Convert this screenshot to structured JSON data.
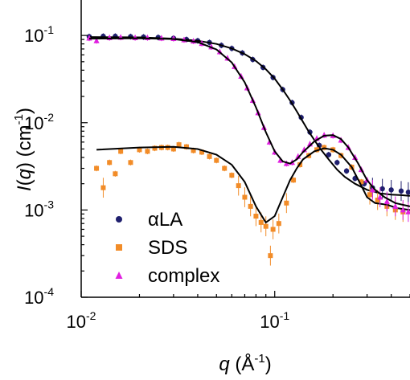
{
  "chart_data": {
    "type": "scatter",
    "x_scale": "log",
    "y_scale": "log",
    "xlim": [
      0.01,
      0.5
    ],
    "ylim": [
      0.0001,
      0.15
    ],
    "xlabel": "q (Å⁻¹)",
    "xlabel_parts": {
      "var": "q",
      "open": " (Å",
      "exp": "-1",
      "close": ")"
    },
    "ylabel": "I(q) (cm⁻¹)",
    "ylabel_parts": {
      "var": "I",
      "mid": "(",
      "var2": "q",
      "open": ") (cm",
      "exp": "-1",
      "close": ")"
    },
    "x_ticks": [
      {
        "value": 0.01,
        "base": "10",
        "exp": "-2"
      },
      {
        "value": 0.1,
        "base": "10",
        "exp": "-1"
      }
    ],
    "y_ticks": [
      {
        "value": 0.1,
        "base": "10",
        "exp": "-1"
      },
      {
        "value": 0.01,
        "base": "10",
        "exp": "-2"
      },
      {
        "value": 0.001,
        "base": "10",
        "exp": "-3"
      },
      {
        "value": 0.0001,
        "base": "10",
        "exp": "-4"
      }
    ],
    "grid": false,
    "legend_position": "bottom-left",
    "series": [
      {
        "name": "αLA",
        "color": "#1f1f6e",
        "marker": "circle",
        "points": [
          [
            0.011,
            0.097
          ],
          [
            0.013,
            0.098
          ],
          [
            0.015,
            0.098
          ],
          [
            0.018,
            0.097
          ],
          [
            0.021,
            0.096
          ],
          [
            0.025,
            0.095
          ],
          [
            0.03,
            0.093
          ],
          [
            0.035,
            0.09
          ],
          [
            0.04,
            0.087
          ],
          [
            0.046,
            0.083
          ],
          [
            0.053,
            0.077
          ],
          [
            0.06,
            0.071
          ],
          [
            0.068,
            0.063
          ],
          [
            0.077,
            0.053
          ],
          [
            0.087,
            0.043
          ],
          [
            0.098,
            0.033
          ],
          [
            0.11,
            0.024
          ],
          [
            0.123,
            0.017
          ],
          [
            0.137,
            0.0115
          ],
          [
            0.152,
            0.0078
          ],
          [
            0.17,
            0.0055
          ],
          [
            0.19,
            0.0043
          ],
          [
            0.21,
            0.0035
          ],
          [
            0.235,
            0.0028
          ],
          [
            0.26,
            0.0023
          ],
          [
            0.29,
            0.002
          ],
          [
            0.32,
            0.0018
          ],
          [
            0.36,
            0.00175
          ],
          [
            0.4,
            0.0017
          ],
          [
            0.45,
            0.00165
          ],
          [
            0.49,
            0.0016
          ]
        ],
        "fit": [
          [
            0.011,
            0.096
          ],
          [
            0.02,
            0.095
          ],
          [
            0.03,
            0.092
          ],
          [
            0.04,
            0.087
          ],
          [
            0.05,
            0.08
          ],
          [
            0.06,
            0.071
          ],
          [
            0.07,
            0.061
          ],
          [
            0.08,
            0.051
          ],
          [
            0.09,
            0.041
          ],
          [
            0.1,
            0.032
          ],
          [
            0.11,
            0.024
          ],
          [
            0.12,
            0.018
          ],
          [
            0.13,
            0.0135
          ],
          [
            0.14,
            0.0102
          ],
          [
            0.15,
            0.0079
          ],
          [
            0.17,
            0.0052
          ],
          [
            0.19,
            0.0038
          ],
          [
            0.21,
            0.0029
          ],
          [
            0.23,
            0.0024
          ],
          [
            0.26,
            0.002
          ],
          [
            0.3,
            0.0017
          ],
          [
            0.35,
            0.00155
          ],
          [
            0.4,
            0.0015
          ],
          [
            0.45,
            0.00148
          ],
          [
            0.5,
            0.00145
          ]
        ]
      },
      {
        "name": "SDS",
        "color": "#f28c28",
        "marker": "square",
        "points": [
          [
            0.012,
            0.003
          ],
          [
            0.013,
            0.0018
          ],
          [
            0.014,
            0.0035
          ],
          [
            0.015,
            0.0026
          ],
          [
            0.016,
            0.0047
          ],
          [
            0.018,
            0.0035
          ],
          [
            0.02,
            0.0049
          ],
          [
            0.022,
            0.0047
          ],
          [
            0.024,
            0.0051
          ],
          [
            0.026,
            0.0052
          ],
          [
            0.028,
            0.0052
          ],
          [
            0.03,
            0.005
          ],
          [
            0.032,
            0.0056
          ],
          [
            0.035,
            0.0053
          ],
          [
            0.038,
            0.0048
          ],
          [
            0.042,
            0.0046
          ],
          [
            0.046,
            0.0041
          ],
          [
            0.05,
            0.0037
          ],
          [
            0.055,
            0.003
          ],
          [
            0.06,
            0.0025
          ],
          [
            0.065,
            0.0019
          ],
          [
            0.07,
            0.0014
          ],
          [
            0.075,
            0.0011
          ],
          [
            0.08,
            0.00085
          ],
          [
            0.085,
            0.00072
          ],
          [
            0.09,
            0.00065
          ],
          [
            0.095,
            0.0003
          ],
          [
            0.098,
            0.0006
          ],
          [
            0.105,
            0.0007
          ],
          [
            0.115,
            0.0012
          ],
          [
            0.125,
            0.0022
          ],
          [
            0.135,
            0.0033
          ],
          [
            0.15,
            0.0042
          ],
          [
            0.165,
            0.0049
          ],
          [
            0.18,
            0.0052
          ],
          [
            0.2,
            0.0049
          ],
          [
            0.22,
            0.0042
          ],
          [
            0.25,
            0.0031
          ],
          [
            0.28,
            0.0021
          ],
          [
            0.31,
            0.0015
          ],
          [
            0.34,
            0.0013
          ],
          [
            0.38,
            0.0011
          ],
          [
            0.42,
            0.001
          ],
          [
            0.46,
            0.00095
          ]
        ],
        "fit": [
          [
            0.012,
            0.0049
          ],
          [
            0.02,
            0.0052
          ],
          [
            0.03,
            0.0053
          ],
          [
            0.04,
            0.005
          ],
          [
            0.05,
            0.0043
          ],
          [
            0.06,
            0.0033
          ],
          [
            0.07,
            0.0021
          ],
          [
            0.08,
            0.0011
          ],
          [
            0.09,
            0.00072
          ],
          [
            0.1,
            0.00085
          ],
          [
            0.11,
            0.0014
          ],
          [
            0.12,
            0.0022
          ],
          [
            0.13,
            0.003
          ],
          [
            0.14,
            0.0038
          ],
          [
            0.16,
            0.0047
          ],
          [
            0.18,
            0.0051
          ],
          [
            0.2,
            0.0049
          ],
          [
            0.22,
            0.0043
          ],
          [
            0.25,
            0.0031
          ],
          [
            0.28,
            0.0019
          ],
          [
            0.3,
            0.0014
          ],
          [
            0.33,
            0.0012
          ],
          [
            0.38,
            0.00115
          ],
          [
            0.43,
            0.00105
          ],
          [
            0.5,
            0.001
          ]
        ]
      },
      {
        "name": "complex",
        "color": "#e020e0",
        "marker": "triangle",
        "points": [
          [
            0.011,
            0.093
          ],
          [
            0.012,
            0.087
          ],
          [
            0.014,
            0.094
          ],
          [
            0.016,
            0.095
          ],
          [
            0.019,
            0.094
          ],
          [
            0.022,
            0.094
          ],
          [
            0.026,
            0.093
          ],
          [
            0.03,
            0.092
          ],
          [
            0.034,
            0.089
          ],
          [
            0.038,
            0.086
          ],
          [
            0.042,
            0.081
          ],
          [
            0.047,
            0.074
          ],
          [
            0.052,
            0.065
          ],
          [
            0.057,
            0.055
          ],
          [
            0.062,
            0.044
          ],
          [
            0.067,
            0.034
          ],
          [
            0.072,
            0.025
          ],
          [
            0.077,
            0.018
          ],
          [
            0.082,
            0.013
          ],
          [
            0.088,
            0.0088
          ],
          [
            0.094,
            0.006
          ],
          [
            0.1,
            0.0046
          ],
          [
            0.107,
            0.0037
          ],
          [
            0.115,
            0.0034
          ],
          [
            0.123,
            0.0035
          ],
          [
            0.132,
            0.0041
          ],
          [
            0.142,
            0.0049
          ],
          [
            0.152,
            0.0057
          ],
          [
            0.165,
            0.0066
          ],
          [
            0.18,
            0.0072
          ],
          [
            0.2,
            0.0071
          ],
          [
            0.22,
            0.0063
          ],
          [
            0.24,
            0.0052
          ],
          [
            0.26,
            0.004
          ],
          [
            0.28,
            0.0029
          ],
          [
            0.3,
            0.0022
          ],
          [
            0.32,
            0.0017
          ],
          [
            0.35,
            0.0014
          ],
          [
            0.38,
            0.00125
          ],
          [
            0.42,
            0.0011
          ],
          [
            0.46,
            0.001
          ],
          [
            0.49,
            0.00095
          ]
        ],
        "fit": [
          [
            0.011,
            0.092
          ],
          [
            0.02,
            0.093
          ],
          [
            0.03,
            0.091
          ],
          [
            0.04,
            0.084
          ],
          [
            0.05,
            0.069
          ],
          [
            0.06,
            0.049
          ],
          [
            0.07,
            0.029
          ],
          [
            0.08,
            0.015
          ],
          [
            0.09,
            0.0078
          ],
          [
            0.1,
            0.0047
          ],
          [
            0.11,
            0.0036
          ],
          [
            0.12,
            0.0034
          ],
          [
            0.13,
            0.0038
          ],
          [
            0.14,
            0.0046
          ],
          [
            0.16,
            0.0061
          ],
          [
            0.18,
            0.0071
          ],
          [
            0.2,
            0.0072
          ],
          [
            0.22,
            0.0065
          ],
          [
            0.24,
            0.0052
          ],
          [
            0.27,
            0.0034
          ],
          [
            0.3,
            0.0022
          ],
          [
            0.33,
            0.0017
          ],
          [
            0.37,
            0.0014
          ],
          [
            0.42,
            0.0012
          ],
          [
            0.5,
            0.0011
          ]
        ]
      }
    ]
  }
}
